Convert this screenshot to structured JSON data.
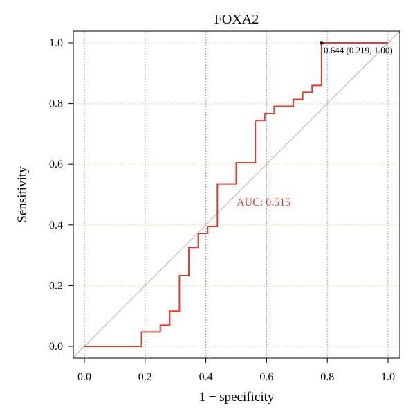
{
  "chart_data": {
    "type": "line",
    "title": "FOXA2",
    "xlabel": "1 − specificity",
    "ylabel": "Sensitivity",
    "xlim": [
      0,
      1
    ],
    "ylim": [
      0,
      1
    ],
    "x_ticks": [
      "0.0",
      "0.2",
      "0.4",
      "0.6",
      "0.8",
      "1.0"
    ],
    "y_ticks": [
      "0.0",
      "0.2",
      "0.4",
      "0.6",
      "0.8",
      "1.0"
    ],
    "grid": true,
    "series": [
      {
        "x": [
          0.0,
          0.188,
          0.188,
          0.25,
          0.25,
          0.281,
          0.281,
          0.313,
          0.313,
          0.344,
          0.344,
          0.375,
          0.375,
          0.406,
          0.406,
          0.438,
          0.438,
          0.5,
          0.5,
          0.563,
          0.563,
          0.594,
          0.594,
          0.625,
          0.625,
          0.688,
          0.688,
          0.719,
          0.719,
          0.75,
          0.75,
          0.781,
          0.781,
          1.0
        ],
        "y": [
          0.0,
          0.0,
          0.047,
          0.047,
          0.07,
          0.07,
          0.116,
          0.116,
          0.233,
          0.233,
          0.326,
          0.326,
          0.372,
          0.372,
          0.395,
          0.395,
          0.535,
          0.535,
          0.605,
          0.605,
          0.744,
          0.744,
          0.767,
          0.767,
          0.791,
          0.791,
          0.814,
          0.814,
          0.837,
          0.837,
          0.86,
          0.86,
          1.0,
          1.0
        ]
      }
    ],
    "reference_line": {
      "x": [
        0,
        1
      ],
      "y": [
        0,
        1
      ]
    },
    "auc_label": "AUC: 0.515",
    "best_point": {
      "x": 0.781,
      "y": 1.0,
      "label": "0.644 (0.219, 1.00)"
    },
    "colors": {
      "roc": "#e8392a",
      "reference": "#b3b3b3",
      "grid_x": "#9a9ae0",
      "grid_y": "#e6e6a0",
      "point": "#000000"
    }
  }
}
